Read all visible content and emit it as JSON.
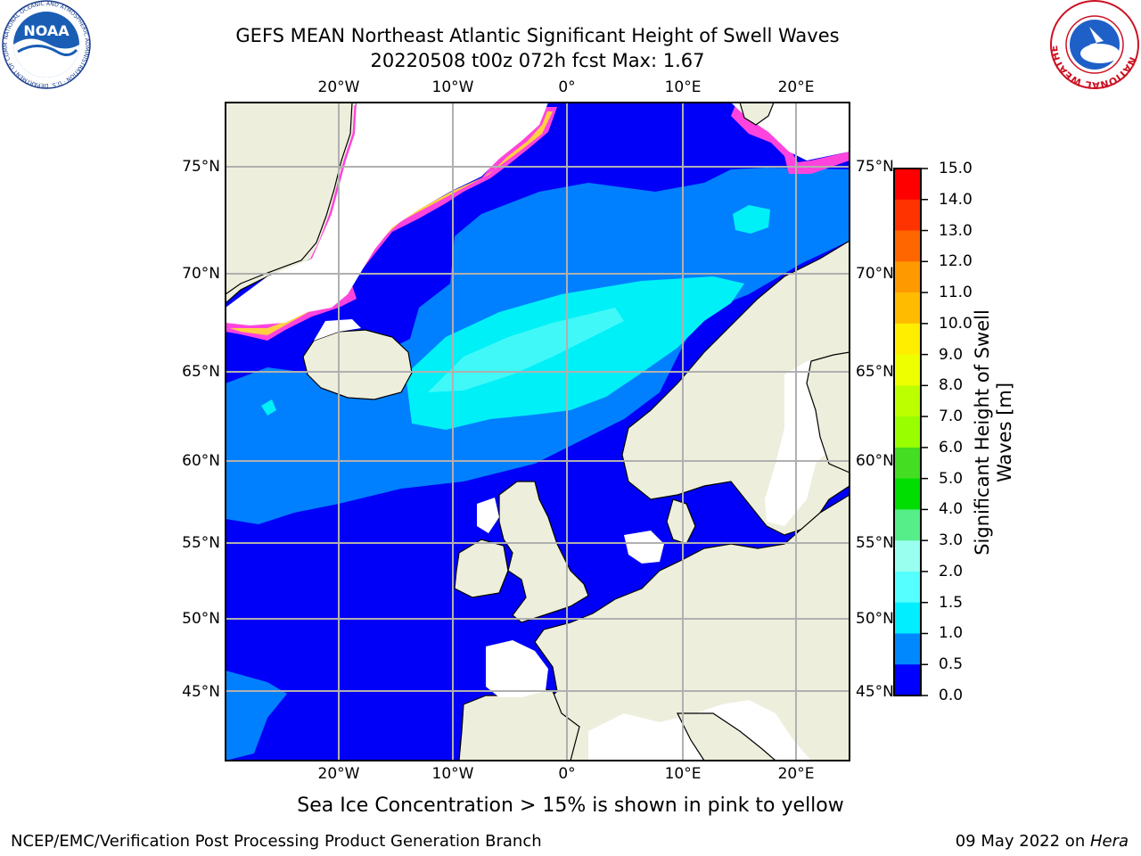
{
  "title": {
    "line1": "GEFS MEAN Northeast Atlantic Significant Height of Swell Waves",
    "line2": "20220508 t00z 072h fcst   Max: 1.67"
  },
  "map": {
    "lon_labels": [
      "20°W",
      "10°W",
      "0°",
      "10°E",
      "20°E"
    ],
    "lat_labels": [
      "75°N",
      "70°N",
      "65°N",
      "60°N",
      "55°N",
      "50°N",
      "45°N"
    ],
    "colors": {
      "land": "#eeeedd",
      "ocean_low": "#0000f8",
      "ocean_mid": "#0080ff",
      "ocean_cyan": "#00f0f8",
      "ocean_cyan2": "#40f8f8",
      "ice_edge": "#ff44dd",
      "ice_inner": "#ffd040",
      "grid": "#b0b0b0"
    }
  },
  "colorbar": {
    "title_line1": "Significant Height of Swell",
    "title_line2": "Waves [m]",
    "ticks": [
      "15.0",
      "14.0",
      "13.0",
      "12.0",
      "11.0",
      "10.0",
      "9.0",
      "8.0",
      "7.0",
      "6.0",
      "5.0",
      "4.0",
      "3.0",
      "2.0",
      "1.5",
      "1.0",
      "0.5",
      "0.0"
    ],
    "colors": [
      "#ff0000",
      "#ff3300",
      "#ff6600",
      "#ff9900",
      "#ffbb00",
      "#ffee00",
      "#eeff00",
      "#bbff00",
      "#99ff00",
      "#44dd22",
      "#00dd00",
      "#55ee88",
      "#99ffee",
      "#55ffff",
      "#00eeff",
      "#0088ff",
      "#0000ff"
    ]
  },
  "caption": "Sea Ice Concentration > 15% is shown in pink to yellow",
  "footer": {
    "left": "NCEP/EMC/Verification Post Processing Product Generation Branch",
    "right_date": "09 May 2022 on ",
    "right_host": "Hera"
  },
  "logos": {
    "noaa_text": "NOAA",
    "noaa_ring": "NATIONAL OCEANIC AND ATMOSPHERIC ADMINISTRATION · U.S. DEPARTMENT OF COMMERCE",
    "nws_ring": "NATIONAL WEATHER SERVICE"
  }
}
